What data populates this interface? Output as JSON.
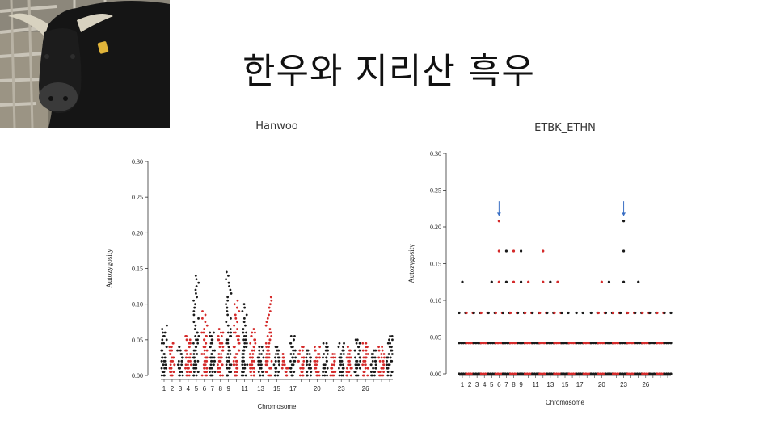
{
  "slide": {
    "title": "한우와 지리산 흑우",
    "photo_icon": "black-cattle-photo"
  },
  "colors": {
    "black_points": "#1a1a1a",
    "red_points": "#d42a2a",
    "arrow": "#3a6fc4"
  },
  "chart_data": [
    {
      "type": "scatter",
      "title": "Hanwoo",
      "xlabel": "Chromosome",
      "ylabel": "Autozygosity",
      "ylim": [
        0,
        0.3
      ],
      "y_ticks": [
        "0.00",
        "0.05",
        "0.10",
        "0.15",
        "0.20",
        "0.25",
        "0.30"
      ],
      "x_tick_labels": [
        "1",
        "2",
        "3",
        "4",
        "5",
        "6",
        "7",
        "8",
        "9",
        "11",
        "13",
        "15",
        "17",
        "20",
        "23",
        "26"
      ],
      "x_tick_chromosomes": [
        1,
        2,
        3,
        4,
        5,
        6,
        7,
        8,
        9,
        11,
        13,
        15,
        17,
        20,
        23,
        26
      ],
      "chromosome_count": 29,
      "series": [
        {
          "color": "black",
          "chromosomes": [
            1,
            3,
            5,
            7,
            9,
            11,
            13,
            15,
            17,
            19,
            21,
            23,
            25,
            27,
            29
          ]
        },
        {
          "color": "red",
          "chromosomes": [
            2,
            4,
            6,
            8,
            10,
            12,
            14,
            16,
            18,
            20,
            22,
            24,
            26,
            28
          ]
        }
      ],
      "max_per_chromosome": [
        0.07,
        0.045,
        0.04,
        0.055,
        0.14,
        0.09,
        0.06,
        0.065,
        0.148,
        0.105,
        0.1,
        0.065,
        0.04,
        0.11,
        0.04,
        0.03,
        0.055,
        0.04,
        0.035,
        0.04,
        0.048,
        0.03,
        0.045,
        0.04,
        0.05,
        0.045,
        0.035,
        0.04,
        0.055
      ]
    },
    {
      "type": "scatter",
      "title": "ETBK_ETHN",
      "xlabel": "Chromosome",
      "ylabel": "Autozygosity",
      "ylim": [
        0,
        0.3
      ],
      "y_ticks": [
        "0.00",
        "0.05",
        "0.10",
        "0.15",
        "0.20",
        "0.25",
        "0.30"
      ],
      "x_tick_labels": [
        "1",
        "2",
        "3",
        "4",
        "5",
        "6",
        "7",
        "8",
        "9",
        "11",
        "13",
        "15",
        "17",
        "20",
        "23",
        "26"
      ],
      "x_tick_chromosomes": [
        1,
        2,
        3,
        4,
        5,
        6,
        7,
        8,
        9,
        11,
        13,
        15,
        17,
        20,
        23,
        26
      ],
      "chromosome_count": 29,
      "levels": [
        0.0,
        0.042,
        0.083,
        0.125,
        0.167,
        0.208
      ],
      "max_per_chromosome": [
        0.125,
        0.083,
        0.083,
        0.083,
        0.125,
        0.208,
        0.167,
        0.167,
        0.167,
        0.125,
        0.083,
        0.167,
        0.125,
        0.125,
        0.083,
        0.042,
        0.083,
        0.042,
        0.083,
        0.125,
        0.125,
        0.083,
        0.208,
        0.083,
        0.125,
        0.083,
        0.083,
        0.083,
        0.083
      ],
      "arrows_at_chromosomes": [
        6,
        23
      ]
    }
  ]
}
